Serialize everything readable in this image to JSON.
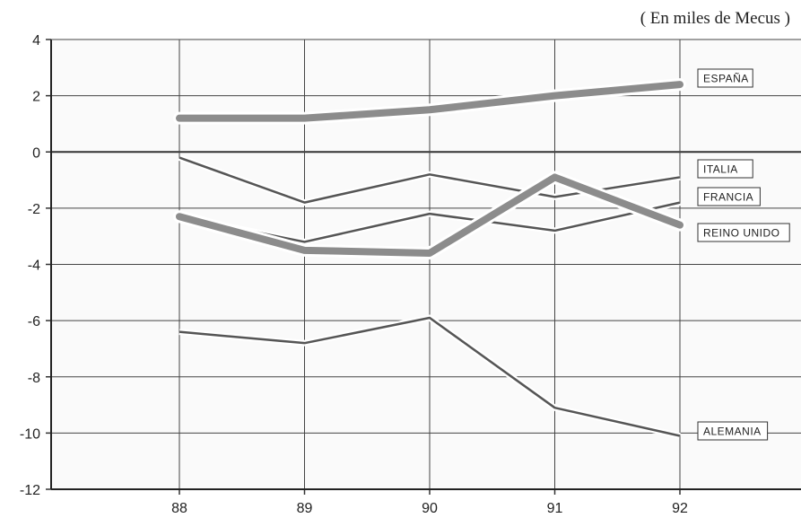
{
  "chart_data": {
    "type": "line",
    "title": "",
    "subtitle": "( En miles de Mecus )",
    "xlabel": "",
    "ylabel": "",
    "categories": [
      "88",
      "89",
      "90",
      "91",
      "92"
    ],
    "ylim": [
      -12,
      4
    ],
    "yticks": [
      "4",
      "2",
      "0",
      "-2",
      "-4",
      "-6",
      "-8",
      "-10",
      "-12"
    ],
    "grid": true,
    "series": [
      {
        "name": "ESPAÑA",
        "values": [
          1.2,
          1.2,
          1.5,
          2.0,
          2.4
        ],
        "color": "#8c8c8c",
        "style": "thick"
      },
      {
        "name": "ITALIA",
        "values": [
          -0.2,
          -1.8,
          -0.8,
          -1.6,
          -0.9
        ],
        "color": "#555555",
        "style": "thin"
      },
      {
        "name": "FRANCIA",
        "values": [
          -2.3,
          -3.2,
          -2.2,
          -2.8,
          -1.8
        ],
        "color": "#555555",
        "style": "thin"
      },
      {
        "name": "REINO UNIDO",
        "values": [
          -2.3,
          -3.5,
          -3.6,
          -0.9,
          -2.6
        ],
        "color": "#8c8c8c",
        "style": "thick"
      },
      {
        "name": "ALEMANIA",
        "values": [
          -6.4,
          -6.8,
          -5.9,
          -9.1,
          -10.1
        ],
        "color": "#555555",
        "style": "thin"
      }
    ]
  }
}
